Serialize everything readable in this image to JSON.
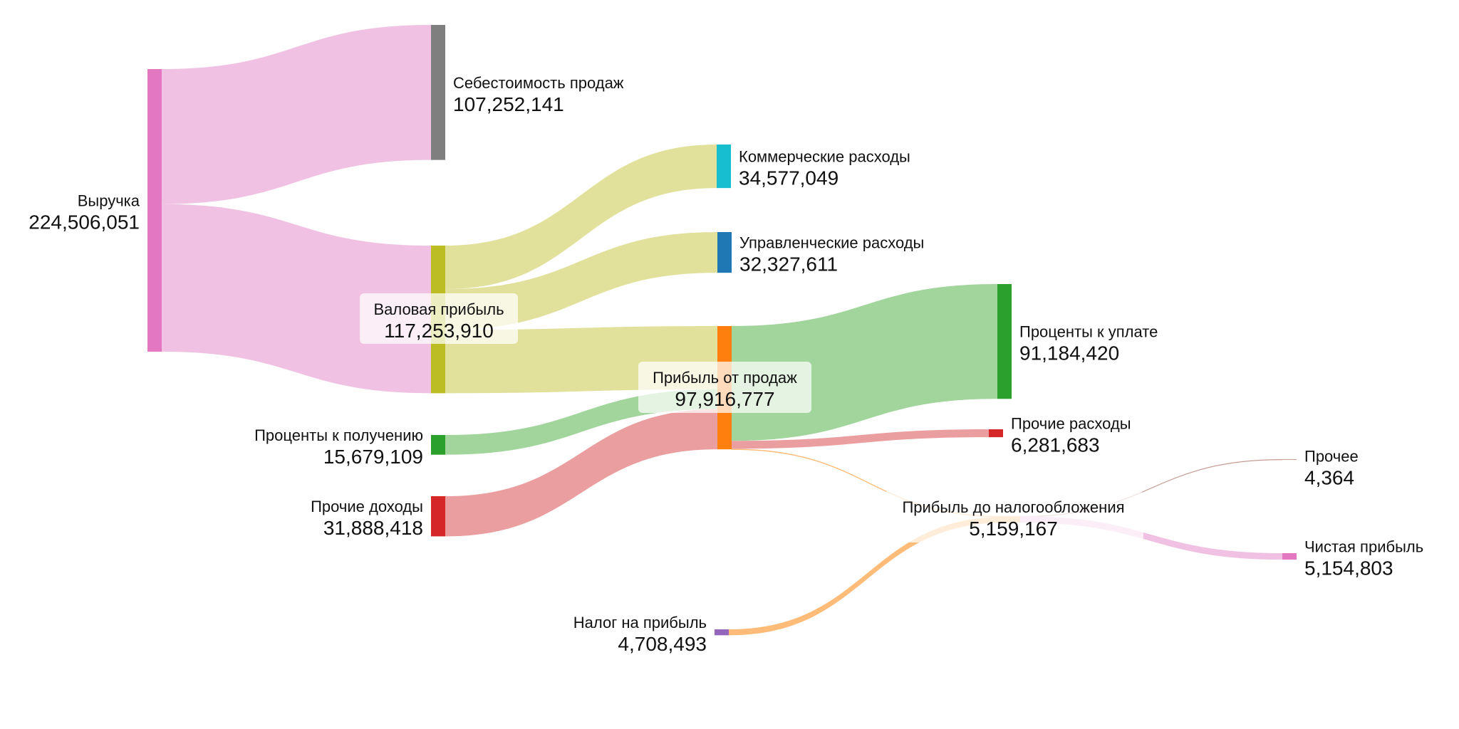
{
  "chart_data": {
    "type": "sankey",
    "title": "",
    "value_format": "thousands-comma",
    "nodes": [
      {
        "id": "revenue",
        "name": "Выручка",
        "value": 224506051,
        "color": "#e377c2"
      },
      {
        "id": "cogs",
        "name": "Себестоимость продаж",
        "value": 107252141,
        "color": "#7f7f7f"
      },
      {
        "id": "gross",
        "name": "Валовая прибыль",
        "value": 117253910,
        "color": "#bcbd22"
      },
      {
        "id": "int_income",
        "name": "Проценты к получению",
        "value": 15679109,
        "color": "#2ca02c"
      },
      {
        "id": "other_income",
        "name": "Прочие доходы",
        "value": 31888418,
        "color": "#d62728"
      },
      {
        "id": "selling",
        "name": "Коммерческие расходы",
        "value": 34577049,
        "color": "#17becf"
      },
      {
        "id": "admin",
        "name": "Управленческие расходы",
        "value": 32327611,
        "color": "#1f77b4"
      },
      {
        "id": "op_profit",
        "name": "Прибыль от продаж",
        "value": 97916777,
        "color": "#ff7f0e"
      },
      {
        "id": "tax",
        "name": "Налог на прибыль",
        "value": 4708493,
        "color": "#9467bd"
      },
      {
        "id": "int_expense",
        "name": "Проценты к уплате",
        "value": 91184420,
        "color": "#2ca02c"
      },
      {
        "id": "other_expense",
        "name": "Прочие расходы",
        "value": 6281683,
        "color": "#d62728"
      },
      {
        "id": "pbt",
        "name": "Прибыль до налогообложения",
        "value": 5159167,
        "color": "#ffbb78"
      },
      {
        "id": "other",
        "name": "Прочее",
        "value": 4364,
        "color": "#c49c94"
      },
      {
        "id": "net",
        "name": "Чистая прибыль",
        "value": 5154803,
        "color": "#e377c2"
      }
    ],
    "links": [
      {
        "source": "revenue",
        "target": "cogs",
        "value": 107252141,
        "color": "#f0c1e2"
      },
      {
        "source": "revenue",
        "target": "gross",
        "value": 117253910,
        "color": "#f0c1e2"
      },
      {
        "source": "gross",
        "target": "selling",
        "value": 34577049,
        "color": "#e1e19c"
      },
      {
        "source": "gross",
        "target": "admin",
        "value": 32327611,
        "color": "#e1e19c"
      },
      {
        "source": "gross",
        "target": "op_profit",
        "value": 50349250,
        "color": "#e1e19c"
      },
      {
        "source": "int_income",
        "target": "op_profit",
        "value": 15679109,
        "color": "#a1d59c"
      },
      {
        "source": "other_income",
        "target": "op_profit",
        "value": 31888418,
        "color": "#eb9e9f"
      },
      {
        "source": "op_profit",
        "target": "int_expense",
        "value": 91184420,
        "color": "#a1d59c"
      },
      {
        "source": "op_profit",
        "target": "other_expense",
        "value": 6281683,
        "color": "#eb9e9f"
      },
      {
        "source": "op_profit",
        "target": "pbt",
        "value": 450674,
        "color": "#ffbb78"
      },
      {
        "source": "tax",
        "target": "pbt",
        "value": 4708493,
        "color": "#ffbb78"
      },
      {
        "source": "pbt",
        "target": "other",
        "value": 4364,
        "color": "#c49c94"
      },
      {
        "source": "pbt",
        "target": "net",
        "value": 5154803,
        "color": "#f0c1e2"
      }
    ],
    "labels": [
      {
        "node": "revenue",
        "name": "Выручка",
        "value_text": "224,506,051"
      },
      {
        "node": "cogs",
        "name": "Себестоимость продаж",
        "value_text": "107,252,141"
      },
      {
        "node": "gross",
        "name": "Валовая прибыль",
        "value_text": "117,253,910"
      },
      {
        "node": "int_income",
        "name": "Проценты к получению",
        "value_text": "15,679,109"
      },
      {
        "node": "other_income",
        "name": "Прочие доходы",
        "value_text": "31,888,418"
      },
      {
        "node": "selling",
        "name": "Коммерческие расходы",
        "value_text": "34,577,049"
      },
      {
        "node": "admin",
        "name": "Управленческие расходы",
        "value_text": "32,327,611"
      },
      {
        "node": "op_profit",
        "name": "Прибыль от продаж",
        "value_text": "97,916,777"
      },
      {
        "node": "tax",
        "name": "Налог на прибыль",
        "value_text": "4,708,493"
      },
      {
        "node": "int_expense",
        "name": "Проценты к уплате",
        "value_text": "91,184,420"
      },
      {
        "node": "other_expense",
        "name": "Прочие расходы",
        "value_text": "6,281,683"
      },
      {
        "node": "pbt",
        "name": "Прибыль до налогообложения",
        "value_text": "5,159,167"
      },
      {
        "node": "other",
        "name": "Прочее",
        "value_text": "4,364"
      },
      {
        "node": "net",
        "name": "Чистая прибыль",
        "value_text": "5,154,803"
      }
    ]
  }
}
